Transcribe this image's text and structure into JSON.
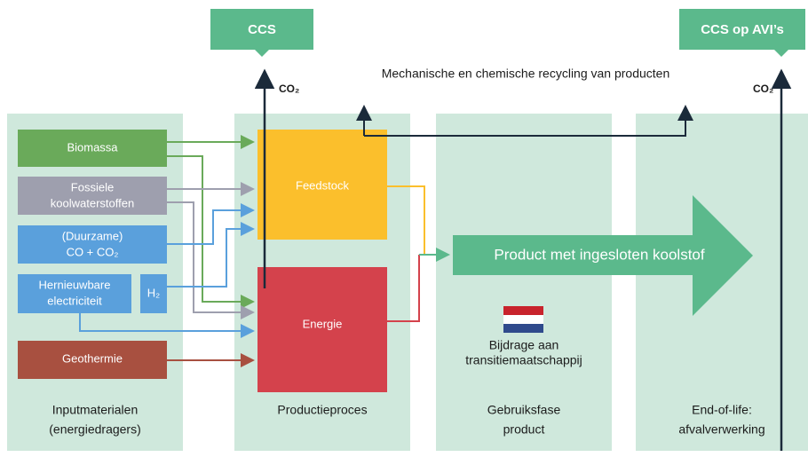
{
  "top_boxes": [
    "CCS",
    "CCS op AVI’s"
  ],
  "co2_labels": [
    "CO₂",
    "CO₂"
  ],
  "recycling": "Mechanische en chemische recycling van producten",
  "inputs": {
    "biomassa": [
      "Biomassa"
    ],
    "fossiel": [
      "Fossiele",
      "koolwaterstoffen"
    ],
    "co": [
      "(Duurzame)",
      "CO + CO₂"
    ],
    "elektriciteit": [
      "Hernieuwbare",
      "electriciteit"
    ],
    "h2": "H₂",
    "geothermie": [
      "Geothermie"
    ]
  },
  "process": {
    "feedstock": "Feedstock",
    "energie": "Energie"
  },
  "product": "Product met ingesloten koolstof",
  "flag_caption": [
    "Bijdrage aan",
    "transitiemaatschappij"
  ],
  "columns": [
    [
      "Inputmaterialen",
      "(energiedragers)"
    ],
    [
      "Productieproces"
    ],
    [
      "Gebruiksfase",
      "product"
    ],
    [
      "End-of-life:",
      "afvalverwerking"
    ]
  ]
}
